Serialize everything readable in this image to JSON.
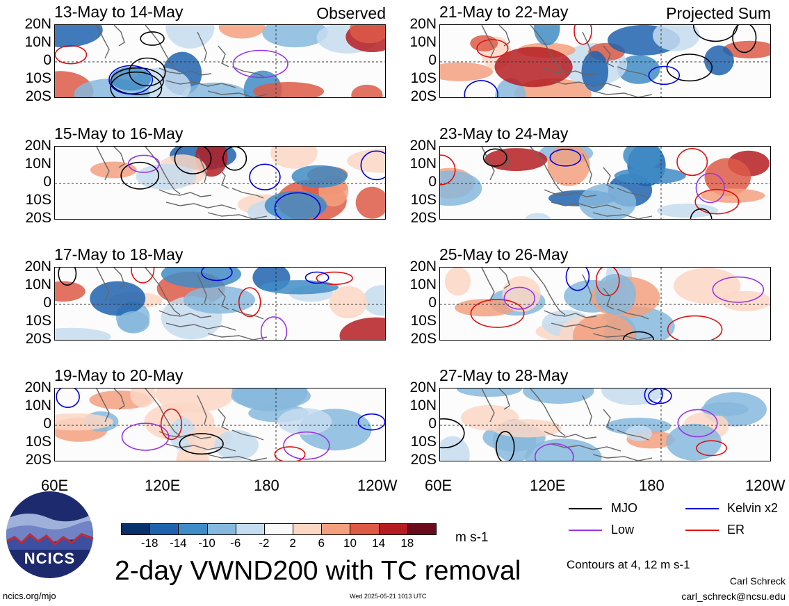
{
  "panels": [
    {
      "title": "13-May to 14-May",
      "tag": "Observed"
    },
    {
      "title": "21-May to 22-May",
      "tag": "Projected Sum"
    },
    {
      "title": "15-May to 16-May",
      "tag": ""
    },
    {
      "title": "23-May to 24-May",
      "tag": ""
    },
    {
      "title": "17-May to 18-May",
      "tag": ""
    },
    {
      "title": "25-May to 26-May",
      "tag": ""
    },
    {
      "title": "19-May to 20-May",
      "tag": ""
    },
    {
      "title": "27-May to 28-May",
      "tag": ""
    }
  ],
  "lat_labels": [
    "20N",
    "10N",
    "0",
    "10S",
    "20S"
  ],
  "lon_labels": [
    "60E",
    "120E",
    "180",
    "120W"
  ],
  "colorbar": {
    "ticks": [
      "-18",
      "-14",
      "-10",
      "-6",
      "-2",
      "2",
      "6",
      "10",
      "14",
      "18"
    ],
    "colors": [
      "#08306b",
      "#1f63ae",
      "#3f8cc6",
      "#86b9dd",
      "#c6dcef",
      "#fafafa",
      "#fbd7c4",
      "#f3a07e",
      "#dd5a46",
      "#b51d22",
      "#6b0a1d"
    ],
    "units": "m s-1"
  },
  "title": "2-day VWND200 with TC removal",
  "legend": [
    {
      "label": "MJO",
      "color": "#000000"
    },
    {
      "label": "Kelvin x2",
      "color": "#0000e0"
    },
    {
      "label": "Low",
      "color": "#9933e6"
    },
    {
      "label": "ER",
      "color": "#e01010"
    }
  ],
  "contours_note": "Contours at 4, 12 m s-1",
  "author_name": "Carl Schreck",
  "author_email": "carl_schreck@ncsu.edu",
  "url": "ncics.org/mjo",
  "timestamp": "Wed 2025-05-21 1013 UTC",
  "logo_text": "NCICS"
}
